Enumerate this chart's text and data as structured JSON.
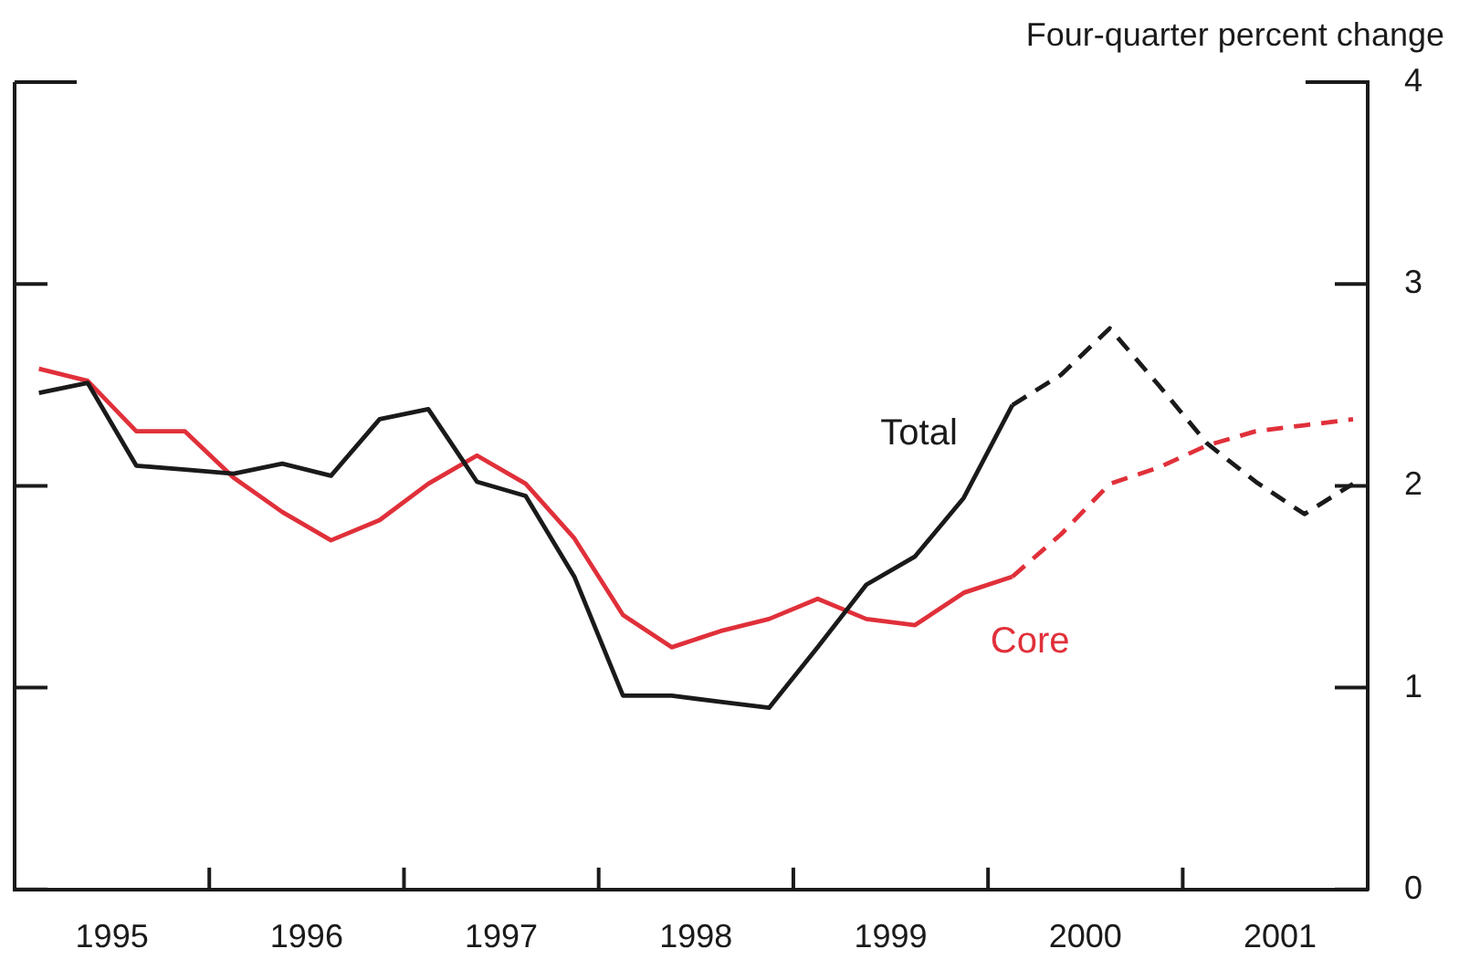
{
  "chart_data": {
    "type": "line",
    "ylabel": "Four-quarter percent change",
    "x": [
      1995.125,
      1995.375,
      1995.625,
      1995.875,
      1996.125,
      1996.375,
      1996.625,
      1996.875,
      1997.125,
      1997.375,
      1997.625,
      1997.875,
      1998.125,
      1998.375,
      1998.625,
      1998.875,
      1999.125,
      1999.375,
      1999.625,
      1999.875,
      2000.125,
      2000.375,
      2000.625,
      2000.875,
      2001.125,
      2001.375,
      2001.625,
      2001.875
    ],
    "series": [
      {
        "name": "Total",
        "color": "#1a1a1a",
        "line_style": "solid",
        "values": [
          2.46,
          2.51,
          2.1,
          2.08,
          2.06,
          2.11,
          2.05,
          2.33,
          2.38,
          2.02,
          1.95,
          1.55,
          0.96,
          0.96,
          0.93,
          0.9,
          1.2,
          1.51,
          1.65,
          1.94,
          2.4,
          null,
          null,
          null,
          null,
          null,
          null,
          null
        ]
      },
      {
        "color": "#1a1a1a",
        "line_style": "dashed",
        "values": [
          null,
          null,
          null,
          null,
          null,
          null,
          null,
          null,
          null,
          null,
          null,
          null,
          null,
          null,
          null,
          null,
          null,
          null,
          null,
          null,
          2.4,
          2.55,
          2.78,
          2.5,
          2.21,
          2.02,
          1.86,
          2.01
        ]
      },
      {
        "name": "Core",
        "color": "#e0303a",
        "line_style": "solid",
        "values": [
          2.58,
          2.52,
          2.27,
          2.27,
          2.04,
          1.87,
          1.73,
          1.83,
          2.01,
          2.15,
          2.01,
          1.74,
          1.36,
          1.2,
          1.28,
          1.34,
          1.44,
          1.34,
          1.31,
          1.47,
          1.55,
          null,
          null,
          null,
          null,
          null,
          null,
          null
        ]
      },
      {
        "color": "#e0303a",
        "line_style": "dashed",
        "values": [
          null,
          null,
          null,
          null,
          null,
          null,
          null,
          null,
          null,
          null,
          null,
          null,
          null,
          null,
          null,
          null,
          null,
          null,
          null,
          null,
          1.55,
          1.76,
          2.01,
          2.09,
          2.2,
          2.27,
          2.3,
          2.33
        ]
      }
    ],
    "xlim": [
      1995,
      2001.95
    ],
    "xticks": [
      {
        "value": 1995.5,
        "label": "1995"
      },
      {
        "value": 1996,
        "label": null
      },
      {
        "value": 1996.5,
        "label": "1996"
      },
      {
        "value": 1997,
        "label": null
      },
      {
        "value": 1997.5,
        "label": "1997"
      },
      {
        "value": 1998,
        "label": null
      },
      {
        "value": 1998.5,
        "label": "1998"
      },
      {
        "value": 1999,
        "label": null
      },
      {
        "value": 1999.5,
        "label": "1999"
      },
      {
        "value": 2000,
        "label": null
      },
      {
        "value": 2000.5,
        "label": "2000"
      },
      {
        "value": 2001,
        "label": null
      },
      {
        "value": 2001.5,
        "label": "2001"
      }
    ],
    "ylim": [
      0,
      4
    ],
    "yticks": [
      0,
      1,
      2,
      3,
      4
    ],
    "marker": "none"
  }
}
